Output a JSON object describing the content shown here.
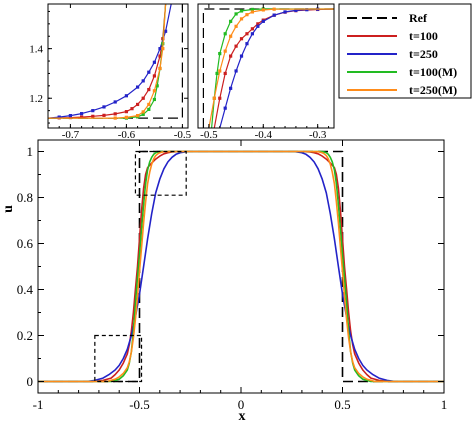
{
  "chart_data": [
    {
      "type": "line",
      "xlabel": "x",
      "ylabel": "u",
      "xlim": [
        -1,
        1
      ],
      "ylim": [
        -0.05,
        1.05
      ],
      "x_ticks": [
        "-1",
        "-0.5",
        "0",
        "0.5",
        "1"
      ],
      "y_ticks": [
        "0",
        "0.2",
        "0.4",
        "0.6",
        "0.8",
        "1"
      ],
      "grid": false,
      "legend_position": "top-right",
      "series": [
        {
          "name": "Ref",
          "color": "#000000",
          "style": "dashed",
          "x": [
            -1.0,
            -0.5,
            -0.5,
            0.5,
            0.5,
            1.0
          ],
          "y": [
            0,
            0,
            1,
            1,
            0,
            0
          ]
        },
        {
          "name": "t=100",
          "color": "#cc1f1f",
          "style": "solid",
          "x": [
            -1.0,
            -0.73,
            -0.68,
            -0.64,
            -0.62,
            -0.6,
            -0.58,
            -0.56,
            -0.55,
            -0.54,
            -0.53,
            -0.52,
            -0.51,
            -0.5,
            -0.49,
            -0.48,
            -0.47,
            -0.46,
            -0.44,
            -0.42,
            -0.4,
            -0.38,
            -0.36,
            -0.34,
            -0.3,
            0.3,
            0.34,
            0.36,
            0.38,
            0.4,
            0.42,
            0.44,
            0.46,
            0.47,
            0.48,
            0.49,
            0.5,
            0.51,
            0.52,
            0.53,
            0.54,
            0.55,
            0.56,
            0.58,
            0.6,
            0.62,
            0.64,
            0.68,
            0.73,
            1.0
          ],
          "y": [
            0,
            0,
            0.005,
            0.015,
            0.03,
            0.05,
            0.08,
            0.12,
            0.16,
            0.22,
            0.3,
            0.4,
            0.5,
            0.62,
            0.74,
            0.84,
            0.9,
            0.93,
            0.95,
            0.967,
            0.98,
            0.99,
            0.995,
            0.998,
            1,
            1,
            0.998,
            0.995,
            0.99,
            0.98,
            0.967,
            0.95,
            0.93,
            0.9,
            0.84,
            0.74,
            0.62,
            0.5,
            0.4,
            0.3,
            0.22,
            0.16,
            0.12,
            0.08,
            0.05,
            0.03,
            0.015,
            0.005,
            0,
            0
          ]
        },
        {
          "name": "t=250",
          "color": "#2323c8",
          "style": "solid",
          "x": [
            -1.0,
            -0.76,
            -0.72,
            -0.68,
            -0.65,
            -0.62,
            -0.6,
            -0.58,
            -0.56,
            -0.54,
            -0.52,
            -0.5,
            -0.48,
            -0.46,
            -0.44,
            -0.42,
            -0.4,
            -0.38,
            -0.36,
            -0.34,
            -0.32,
            -0.3,
            -0.26,
            0.26,
            0.3,
            0.32,
            0.34,
            0.36,
            0.38,
            0.4,
            0.42,
            0.44,
            0.46,
            0.48,
            0.5,
            0.52,
            0.54,
            0.56,
            0.58,
            0.6,
            0.62,
            0.65,
            0.68,
            0.72,
            0.76,
            1.0
          ],
          "y": [
            0,
            0,
            0.005,
            0.015,
            0.03,
            0.05,
            0.07,
            0.1,
            0.14,
            0.2,
            0.28,
            0.38,
            0.5,
            0.62,
            0.73,
            0.82,
            0.88,
            0.925,
            0.955,
            0.975,
            0.988,
            0.995,
            1,
            1,
            0.995,
            0.988,
            0.975,
            0.955,
            0.925,
            0.88,
            0.82,
            0.73,
            0.62,
            0.5,
            0.38,
            0.28,
            0.2,
            0.14,
            0.1,
            0.07,
            0.05,
            0.03,
            0.015,
            0.005,
            0,
            0
          ]
        },
        {
          "name": "t=100(M)",
          "color": "#22bb22",
          "style": "solid",
          "x": [
            -1.0,
            -0.64,
            -0.6,
            -0.58,
            -0.56,
            -0.55,
            -0.54,
            -0.53,
            -0.52,
            -0.51,
            -0.5,
            -0.49,
            -0.48,
            -0.47,
            -0.46,
            -0.45,
            -0.44,
            -0.43,
            -0.42,
            -0.41,
            -0.4,
            -0.37,
            0.37,
            0.4,
            0.41,
            0.42,
            0.43,
            0.44,
            0.45,
            0.46,
            0.47,
            0.48,
            0.49,
            0.5,
            0.51,
            0.52,
            0.53,
            0.54,
            0.55,
            0.56,
            0.58,
            0.6,
            0.64,
            1.0
          ],
          "y": [
            0,
            0,
            0.01,
            0.025,
            0.05,
            0.08,
            0.13,
            0.22,
            0.34,
            0.45,
            0.55,
            0.66,
            0.77,
            0.86,
            0.92,
            0.955,
            0.975,
            0.988,
            0.995,
            0.998,
            1,
            1,
            1,
            1,
            0.998,
            0.995,
            0.988,
            0.975,
            0.955,
            0.92,
            0.86,
            0.77,
            0.66,
            0.55,
            0.45,
            0.34,
            0.22,
            0.13,
            0.08,
            0.05,
            0.025,
            0.01,
            0,
            0
          ]
        },
        {
          "name": "t=250(M)",
          "color": "#ff8c1a",
          "style": "solid",
          "x": [
            -1.0,
            -0.66,
            -0.62,
            -0.6,
            -0.58,
            -0.56,
            -0.55,
            -0.54,
            -0.53,
            -0.52,
            -0.51,
            -0.5,
            -0.49,
            -0.48,
            -0.47,
            -0.46,
            -0.45,
            -0.44,
            -0.43,
            -0.42,
            -0.41,
            -0.4,
            -0.38,
            -0.35,
            0.35,
            0.38,
            0.4,
            0.41,
            0.42,
            0.43,
            0.44,
            0.45,
            0.46,
            0.47,
            0.48,
            0.49,
            0.5,
            0.51,
            0.52,
            0.53,
            0.54,
            0.55,
            0.56,
            0.58,
            0.6,
            0.62,
            0.66,
            1.0
          ],
          "y": [
            0,
            0,
            0.01,
            0.02,
            0.035,
            0.06,
            0.085,
            0.13,
            0.19,
            0.27,
            0.37,
            0.48,
            0.58,
            0.69,
            0.78,
            0.86,
            0.91,
            0.945,
            0.968,
            0.982,
            0.99,
            0.995,
            0.999,
            1,
            1,
            0.999,
            0.995,
            0.99,
            0.982,
            0.968,
            0.945,
            0.91,
            0.86,
            0.78,
            0.69,
            0.58,
            0.48,
            0.37,
            0.27,
            0.19,
            0.13,
            0.085,
            0.06,
            0.035,
            0.02,
            0.01,
            0,
            0
          ]
        }
      ],
      "zoom_boxes": [
        {
          "xlim": [
            -0.72,
            -0.49
          ],
          "ylim": [
            0,
            0.2
          ]
        },
        {
          "xlim": [
            -0.52,
            -0.27
          ],
          "ylim": [
            0.81,
            1.0
          ]
        }
      ]
    },
    {
      "type": "line",
      "panel": "inset-left",
      "xlim": [
        -0.74,
        -0.49
      ],
      "ylim": [
        1.08,
        1.58
      ],
      "x_ticks": [
        "-0.7",
        "-0.6",
        "-0.5"
      ],
      "y_ticks": [
        "1.2",
        "1.4"
      ],
      "series": [
        {
          "name": "Ref",
          "x": [
            -0.74,
            -0.5,
            -0.5
          ],
          "y": [
            1.12,
            1.12,
            1.58
          ]
        },
        {
          "name": "t=100",
          "x": [
            -0.74,
            -0.72,
            -0.7,
            -0.68,
            -0.66,
            -0.64,
            -0.62,
            -0.6,
            -0.59,
            -0.58,
            -0.57,
            -0.56,
            -0.55,
            -0.54,
            -0.535,
            -0.53
          ],
          "y": [
            1.12,
            1.121,
            1.122,
            1.124,
            1.127,
            1.131,
            1.137,
            1.146,
            1.158,
            1.175,
            1.2,
            1.235,
            1.29,
            1.37,
            1.44,
            1.58
          ]
        },
        {
          "name": "t=250",
          "x": [
            -0.74,
            -0.72,
            -0.7,
            -0.68,
            -0.66,
            -0.64,
            -0.62,
            -0.6,
            -0.58,
            -0.57,
            -0.56,
            -0.55,
            -0.54,
            -0.53,
            -0.52
          ],
          "y": [
            1.12,
            1.124,
            1.13,
            1.138,
            1.15,
            1.165,
            1.185,
            1.21,
            1.245,
            1.27,
            1.305,
            1.345,
            1.4,
            1.47,
            1.58
          ]
        },
        {
          "name": "t=100(M)",
          "x": [
            -0.74,
            -0.6,
            -0.58,
            -0.57,
            -0.56,
            -0.55,
            -0.545,
            -0.54,
            -0.535,
            -0.53
          ],
          "y": [
            1.12,
            1.12,
            1.125,
            1.135,
            1.155,
            1.195,
            1.25,
            1.32,
            1.42,
            1.58
          ]
        },
        {
          "name": "t=250(M)",
          "x": [
            -0.74,
            -0.62,
            -0.6,
            -0.58,
            -0.57,
            -0.56,
            -0.55,
            -0.54,
            -0.535,
            -0.53
          ],
          "y": [
            1.12,
            1.12,
            1.123,
            1.13,
            1.145,
            1.175,
            1.23,
            1.32,
            1.4,
            1.58
          ]
        }
      ]
    },
    {
      "type": "line",
      "panel": "inset-right",
      "xlim": [
        -0.52,
        -0.27
      ],
      "ylim": [
        1.08,
        1.58
      ],
      "x_ticks": [
        "-0.5",
        "-0.4",
        "-0.3"
      ],
      "series": [
        {
          "name": "Ref",
          "x": [
            -0.51,
            -0.51,
            -0.27
          ],
          "y": [
            1.08,
            1.56,
            1.56
          ]
        },
        {
          "name": "t=100",
          "x": [
            -0.49,
            -0.48,
            -0.47,
            -0.46,
            -0.45,
            -0.44,
            -0.43,
            -0.42,
            -0.41,
            -0.4,
            -0.38,
            -0.36,
            -0.34,
            -0.3,
            -0.27
          ],
          "y": [
            1.08,
            1.2,
            1.3,
            1.37,
            1.41,
            1.44,
            1.46,
            1.48,
            1.5,
            1.515,
            1.535,
            1.547,
            1.553,
            1.558,
            1.56
          ]
        },
        {
          "name": "t=250",
          "x": [
            -0.48,
            -0.47,
            -0.46,
            -0.45,
            -0.44,
            -0.43,
            -0.42,
            -0.41,
            -0.4,
            -0.38,
            -0.36,
            -0.34,
            -0.32,
            -0.3,
            -0.27
          ],
          "y": [
            1.08,
            1.16,
            1.24,
            1.31,
            1.37,
            1.42,
            1.46,
            1.49,
            1.51,
            1.535,
            1.548,
            1.554,
            1.557,
            1.559,
            1.56
          ]
        },
        {
          "name": "t=100(M)",
          "x": [
            -0.495,
            -0.49,
            -0.485,
            -0.48,
            -0.47,
            -0.46,
            -0.45,
            -0.44,
            -0.42,
            -0.4,
            -0.27
          ],
          "y": [
            1.08,
            1.2,
            1.3,
            1.38,
            1.46,
            1.51,
            1.54,
            1.552,
            1.558,
            1.56,
            1.56
          ]
        },
        {
          "name": "t=250(M)",
          "x": [
            -0.5,
            -0.49,
            -0.48,
            -0.47,
            -0.46,
            -0.45,
            -0.44,
            -0.43,
            -0.42,
            -0.4,
            -0.38,
            -0.27
          ],
          "y": [
            1.08,
            1.2,
            1.31,
            1.39,
            1.45,
            1.49,
            1.52,
            1.537,
            1.548,
            1.556,
            1.559,
            1.56
          ]
        }
      ]
    }
  ]
}
